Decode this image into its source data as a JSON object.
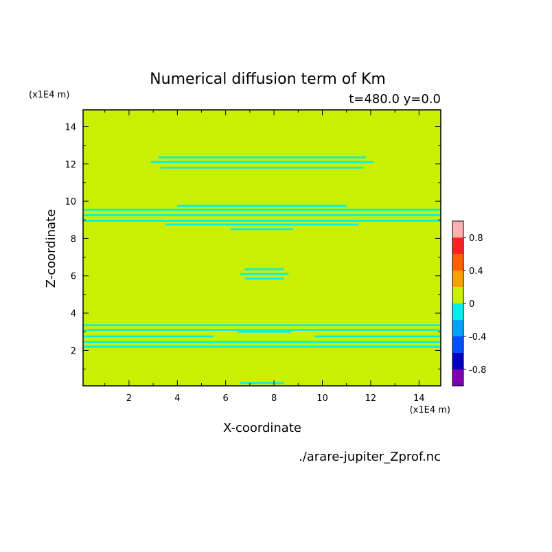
{
  "chart_data": {
    "type": "heatmap",
    "title": "Numerical diffusion term of Km",
    "subtitle": "t=480.0 y=0.0",
    "xlabel": "X-coordinate",
    "ylabel": "Z-coordinate",
    "x_unit": "(x1E4 m)",
    "y_unit": "(x1E4 m)",
    "xlim": [
      0.1,
      14.9
    ],
    "ylim": [
      0.1,
      14.9
    ],
    "x_ticks": [
      2,
      4,
      6,
      8,
      10,
      12,
      14
    ],
    "y_ticks": [
      2,
      4,
      6,
      8,
      10,
      12,
      14
    ],
    "footer": "./arare-jupiter_Zprof.nc",
    "fill_colors": {
      "zero": "#c8f000",
      "neg": "#00f0f0"
    },
    "colorbar": {
      "levels": [
        {
          "range": [
            0.8,
            1.0
          ],
          "color": "#ffb0b0"
        },
        {
          "range": [
            0.6,
            0.8
          ],
          "color": "#ff2020"
        },
        {
          "range": [
            0.4,
            0.6
          ],
          "color": "#ff6000"
        },
        {
          "range": [
            0.2,
            0.4
          ],
          "color": "#ffa000"
        },
        {
          "range": [
            0.0,
            0.2
          ],
          "color": "#c8f000"
        },
        {
          "range": [
            -0.2,
            0.0
          ],
          "color": "#00f0f0"
        },
        {
          "range": [
            -0.4,
            -0.2
          ],
          "color": "#00a0ff"
        },
        {
          "range": [
            -0.6,
            -0.4
          ],
          "color": "#0050ff"
        },
        {
          "range": [
            -0.8,
            -0.6
          ],
          "color": "#0000c0"
        },
        {
          "range": [
            -1.0,
            -0.8
          ],
          "color": "#8000b0"
        }
      ],
      "tick_labels": [
        "0.8",
        "0.4",
        "0",
        "-0.4",
        "-0.8"
      ],
      "tick_values": [
        0.8,
        0.4,
        0,
        -0.4,
        -0.8
      ]
    },
    "negative_regions": [
      {
        "x": [
          3.2,
          11.8
        ],
        "z": [
          12.3,
          12.4
        ]
      },
      {
        "x": [
          2.9,
          12.1
        ],
        "z": [
          12.05,
          12.15
        ]
      },
      {
        "x": [
          3.3,
          11.7
        ],
        "z": [
          11.75,
          11.85
        ]
      },
      {
        "x": [
          0.1,
          14.9
        ],
        "z": [
          9.5,
          9.6
        ]
      },
      {
        "x": [
          4.0,
          11.0
        ],
        "z": [
          9.7,
          9.8
        ]
      },
      {
        "x": [
          0.1,
          14.9
        ],
        "z": [
          9.2,
          9.3
        ]
      },
      {
        "x": [
          0.1,
          14.9
        ],
        "z": [
          8.9,
          9.0
        ]
      },
      {
        "x": [
          3.5,
          11.5
        ],
        "z": [
          8.7,
          8.8
        ]
      },
      {
        "x": [
          6.2,
          8.8
        ],
        "z": [
          8.45,
          8.55
        ]
      },
      {
        "x": [
          6.8,
          8.4
        ],
        "z": [
          6.3,
          6.4
        ]
      },
      {
        "x": [
          6.6,
          8.6
        ],
        "z": [
          6.05,
          6.15
        ]
      },
      {
        "x": [
          6.8,
          8.4
        ],
        "z": [
          5.8,
          5.9
        ]
      },
      {
        "x": [
          0.1,
          14.9
        ],
        "z": [
          3.3,
          3.4
        ]
      },
      {
        "x": [
          0.1,
          14.9
        ],
        "z": [
          3.05,
          3.15
        ]
      },
      {
        "x": [
          0.1,
          14.9
        ],
        "z": [
          2.4,
          2.5
        ]
      },
      {
        "x": [
          0.1,
          14.9
        ],
        "z": [
          2.15,
          2.25
        ]
      },
      {
        "x": [
          0.1,
          5.5
        ],
        "z": [
          2.7,
          2.8
        ]
      },
      {
        "x": [
          9.7,
          14.9
        ],
        "z": [
          2.7,
          2.8
        ]
      },
      {
        "x": [
          6.5,
          8.7
        ],
        "z": [
          2.95,
          3.05
        ]
      },
      {
        "x": [
          6.6,
          8.4
        ],
        "z": [
          0.2,
          0.3
        ]
      }
    ]
  }
}
